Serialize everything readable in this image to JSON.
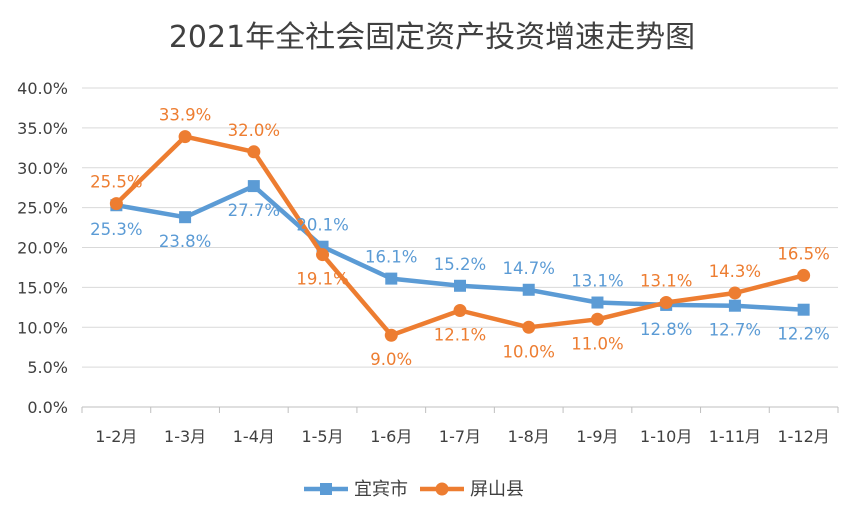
{
  "chart_data": {
    "type": "line",
    "title": "2021年全社会固定资产投资增速走势图",
    "xlabel": "",
    "ylabel": "",
    "categories": [
      "1-2月",
      "1-3月",
      "1-4月",
      "1-5月",
      "1-6月",
      "1-7月",
      "1-8月",
      "1-9月",
      "1-10月",
      "1-11月",
      "1-12月"
    ],
    "y_ticks": [
      "0.0%",
      "5.0%",
      "10.0%",
      "15.0%",
      "20.0%",
      "25.0%",
      "30.0%",
      "35.0%",
      "40.0%"
    ],
    "ylim": [
      0,
      40
    ],
    "grid": true,
    "legend_position": "bottom",
    "series": [
      {
        "name": "宜宾市",
        "color": "#5B9BD5",
        "marker": "square",
        "values": [
          25.3,
          23.8,
          27.7,
          20.1,
          16.1,
          15.2,
          14.7,
          13.1,
          12.8,
          12.7,
          12.2
        ],
        "labels": [
          "25.3%",
          "23.8%",
          "27.7%",
          "20.1%",
          "16.1%",
          "15.2%",
          "14.7%",
          "13.1%",
          "12.8%",
          "12.7%",
          "12.2%"
        ]
      },
      {
        "name": "屏山县",
        "color": "#ED7D31",
        "marker": "circle",
        "values": [
          25.5,
          33.9,
          32.0,
          19.1,
          9.0,
          12.1,
          10.0,
          11.0,
          13.1,
          14.3,
          16.5
        ],
        "labels": [
          "25.5%",
          "33.9%",
          "32.0%",
          "19.1%",
          "9.0%",
          "12.1%",
          "10.0%",
          "11.0%",
          "13.1%",
          "14.3%",
          "16.5%"
        ]
      }
    ]
  }
}
